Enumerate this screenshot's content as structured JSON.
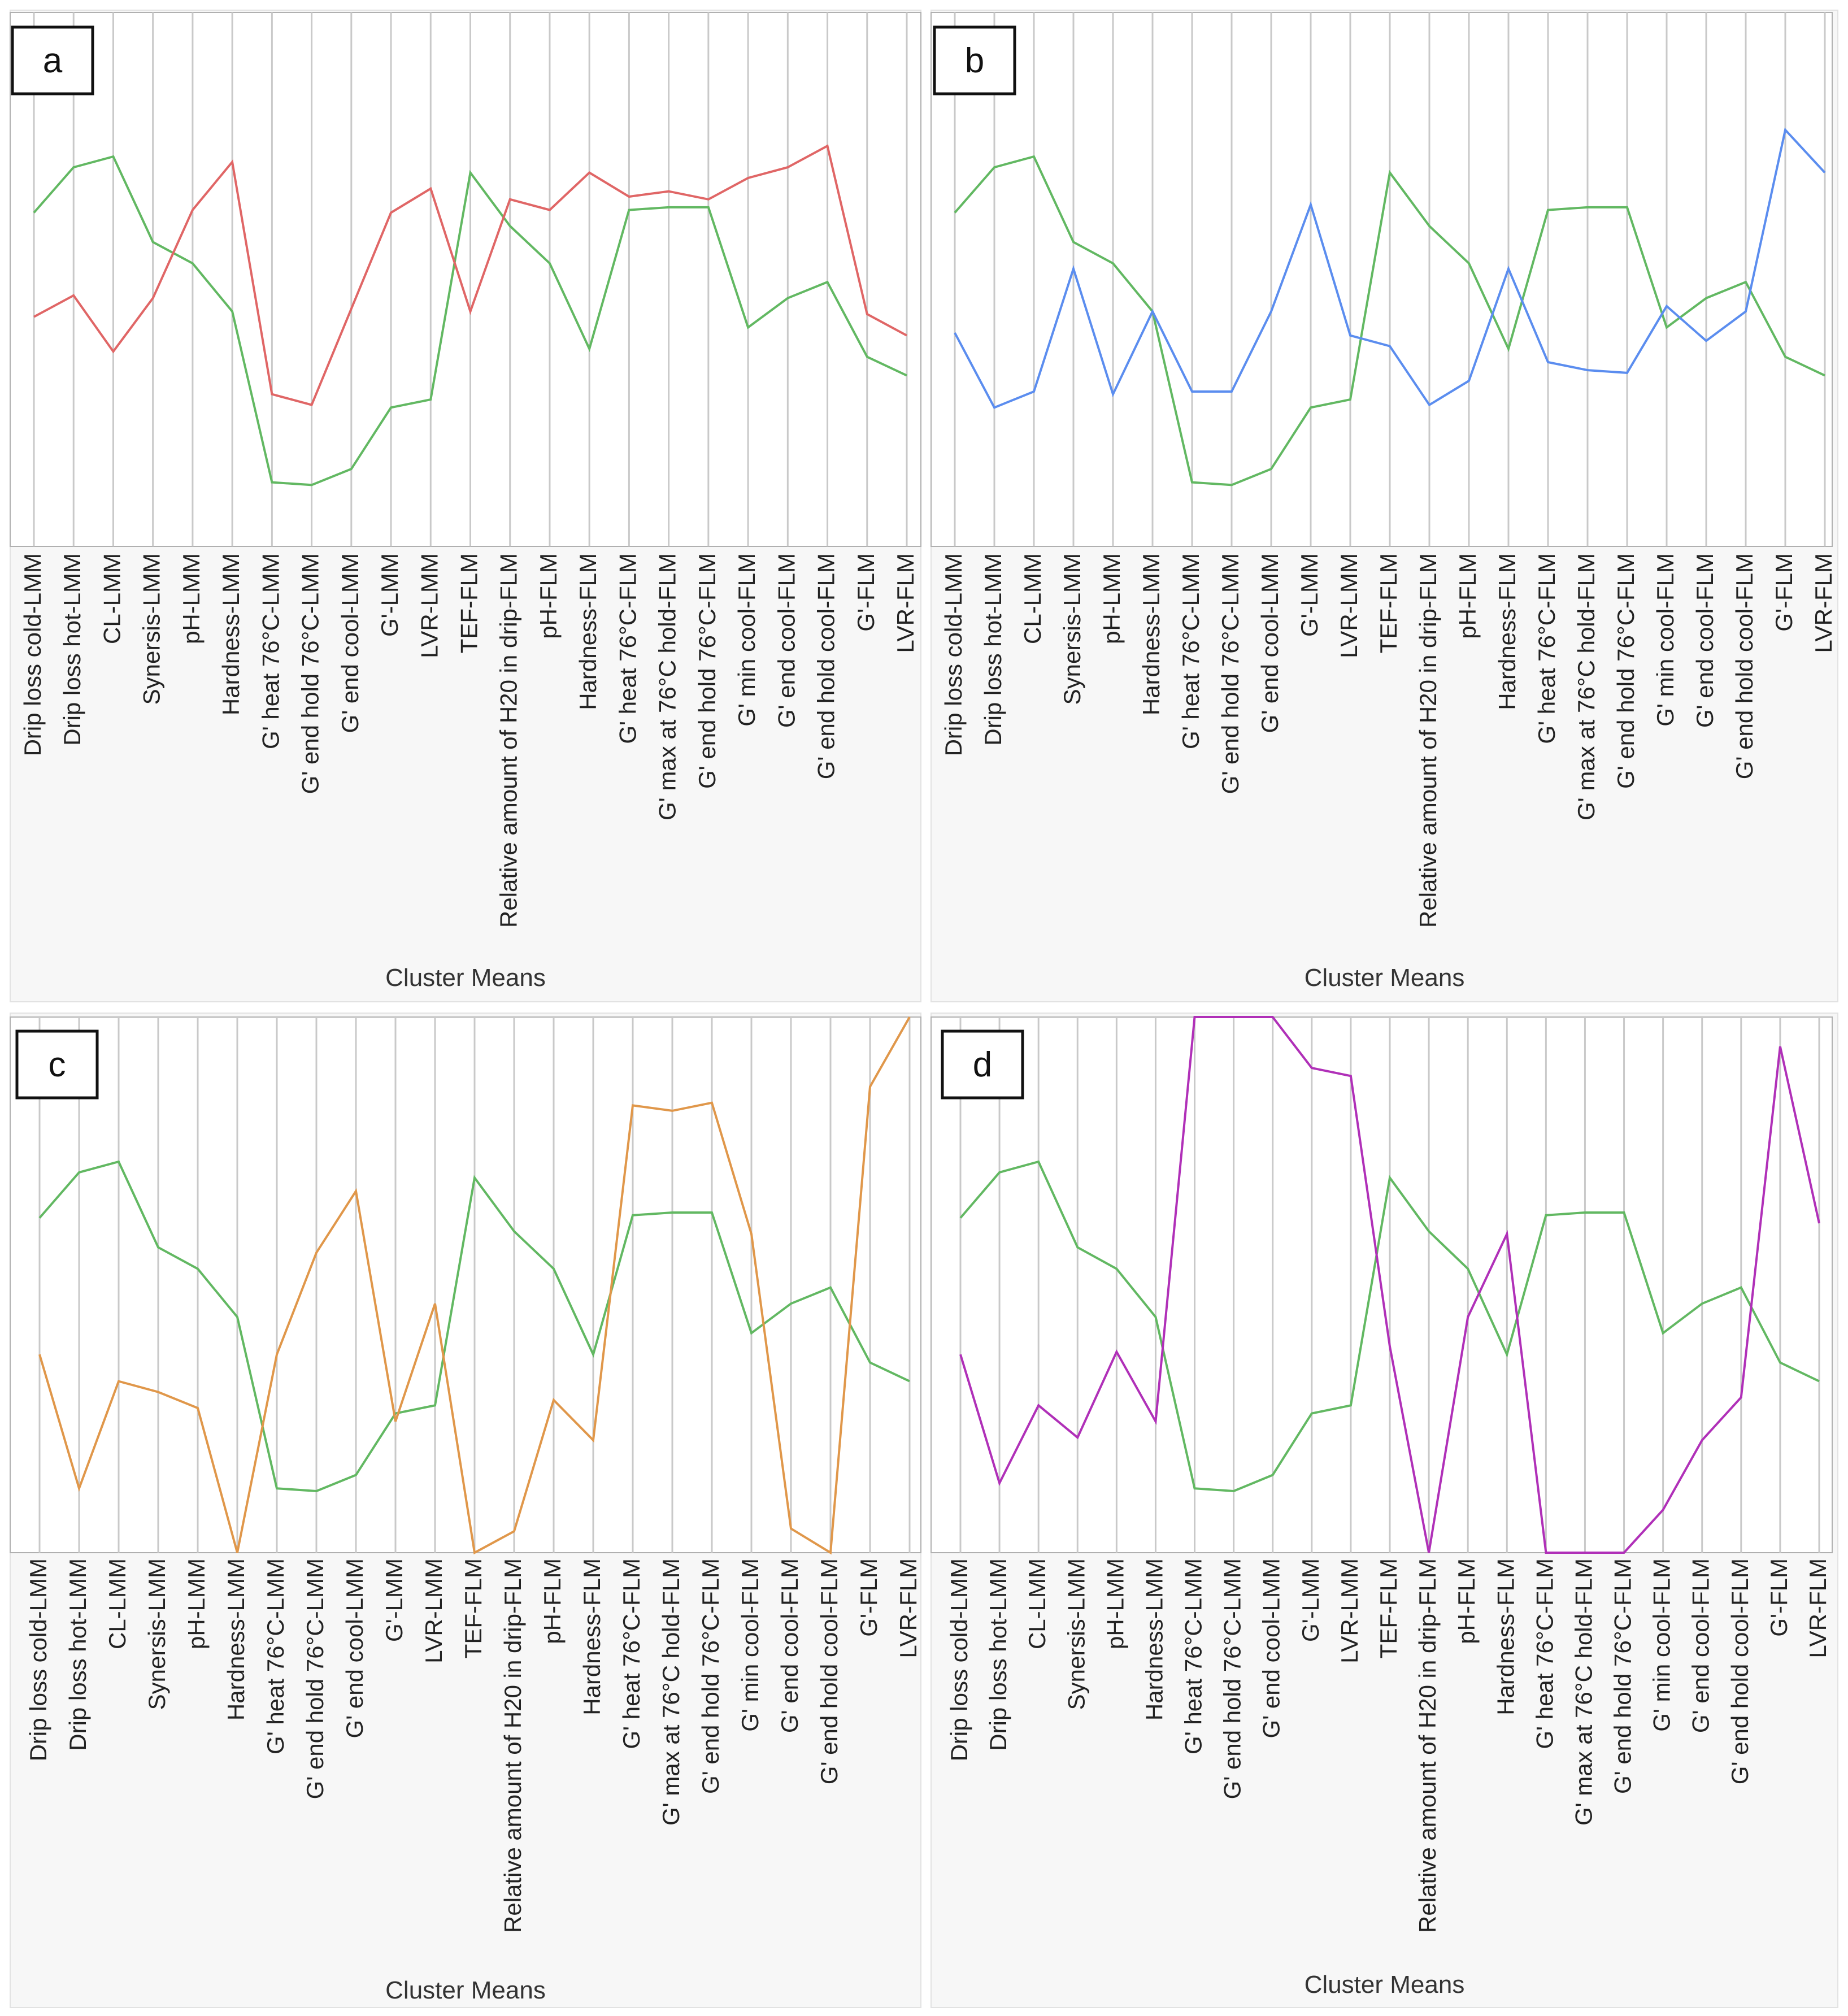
{
  "figure": {
    "categories": [
      "Drip loss cold-LMM",
      "Drip loss hot-LMM",
      "CL-LMM",
      "Synersis-LMM",
      "pH-LMM",
      "Hardness-LMM",
      "G' heat 76°C-LMM",
      "G' end hold 76°C-LMM",
      "G' end cool-LMM",
      "G'-LMM",
      "LVR-LMM",
      "TEF-FLM",
      "Relative amount of H20 in drip-FLM",
      "pH-FLM",
      "Hardness-FLM",
      "G' heat 76°C-FLM",
      "G' max at 76°C hold-FLM",
      "G' end hold 76°C-FLM",
      "G' min cool-FLM",
      "G' end cool-FLM",
      "G' end hold cool-FLM",
      "G'-FLM",
      "LVR-FLM"
    ],
    "reference_series": {
      "name": "green",
      "color": "#62b862",
      "values": [
        0.625,
        0.71,
        0.73,
        0.57,
        0.53,
        0.44,
        0.12,
        0.115,
        0.145,
        0.26,
        0.275,
        0.7,
        0.6,
        0.53,
        0.37,
        0.63,
        0.635,
        0.635,
        0.41,
        0.465,
        0.495,
        0.355,
        0.32
      ]
    }
  },
  "chart_data": [
    {
      "type": "line",
      "panel_label": "a",
      "xlabel": "Cluster Means",
      "ylim": [
        0,
        1
      ],
      "categories_ref": "figure.categories",
      "series": [
        {
          "name": "green",
          "color": "#62b862",
          "values_ref": "figure.reference_series.values"
        },
        {
          "name": "cluster a",
          "color": "#e06666",
          "values": [
            0.43,
            0.47,
            0.365,
            0.465,
            0.63,
            0.72,
            0.285,
            0.265,
            0.445,
            0.625,
            0.67,
            0.44,
            0.65,
            0.63,
            0.7,
            0.655,
            0.665,
            0.65,
            0.69,
            0.71,
            0.75,
            0.435,
            0.395
          ]
        }
      ]
    },
    {
      "type": "line",
      "panel_label": "b",
      "xlabel": "Cluster Means",
      "ylim": [
        0,
        1
      ],
      "categories_ref": "figure.categories",
      "series": [
        {
          "name": "green",
          "color": "#62b862",
          "values_ref": "figure.reference_series.values"
        },
        {
          "name": "cluster b",
          "color": "#5b8def",
          "values": [
            0.4,
            0.26,
            0.29,
            0.52,
            0.285,
            0.44,
            0.29,
            0.29,
            0.44,
            0.64,
            0.395,
            0.375,
            0.265,
            0.31,
            0.52,
            0.345,
            0.33,
            0.325,
            0.45,
            0.385,
            0.44,
            0.78,
            0.7
          ]
        }
      ]
    },
    {
      "type": "line",
      "panel_label": "c",
      "xlabel": "Cluster Means",
      "ylim": [
        0,
        1
      ],
      "categories_ref": "figure.categories",
      "series": [
        {
          "name": "green",
          "color": "#62b862",
          "values_ref": "figure.reference_series.values"
        },
        {
          "name": "cluster c",
          "color": "#e0974a",
          "values": [
            0.37,
            0.12,
            0.32,
            0.3,
            0.27,
            0.0,
            0.37,
            0.56,
            0.675,
            0.245,
            0.465,
            0.0,
            0.04,
            0.285,
            0.21,
            0.835,
            0.825,
            0.84,
            0.595,
            0.045,
            0.0,
            0.87,
            1.0
          ]
        }
      ]
    },
    {
      "type": "line",
      "panel_label": "d",
      "xlabel": "Cluster Means",
      "ylim": [
        0,
        1
      ],
      "categories_ref": "figure.categories",
      "series": [
        {
          "name": "green",
          "color": "#62b862",
          "values_ref": "figure.reference_series.values"
        },
        {
          "name": "cluster d",
          "color": "#b030b8",
          "values": [
            0.37,
            0.13,
            0.275,
            0.215,
            0.375,
            0.245,
            1.0,
            1.0,
            1.0,
            0.905,
            0.89,
            0.385,
            0.0,
            0.44,
            0.595,
            0.0,
            0.0,
            0.0,
            0.08,
            0.21,
            0.29,
            0.945,
            0.615
          ]
        }
      ]
    }
  ]
}
